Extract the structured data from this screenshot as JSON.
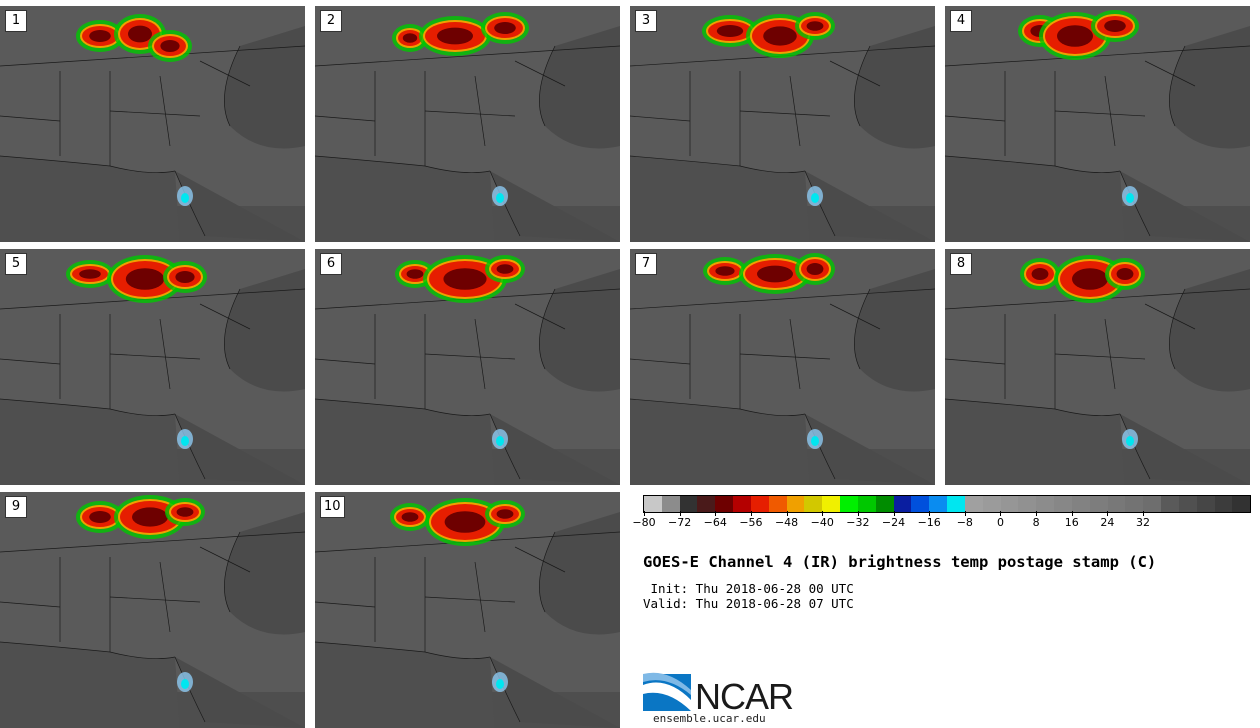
{
  "panels": [
    {
      "label": "1"
    },
    {
      "label": "2"
    },
    {
      "label": "3"
    },
    {
      "label": "4"
    },
    {
      "label": "5"
    },
    {
      "label": "6"
    },
    {
      "label": "7"
    },
    {
      "label": "8"
    },
    {
      "label": "9"
    },
    {
      "label": "10"
    }
  ],
  "colorbar": {
    "colors": [
      "#c8c8c8",
      "#8c8c8c",
      "#323232",
      "#4a1a1a",
      "#6e0000",
      "#b40000",
      "#e61e00",
      "#f05a00",
      "#f0a000",
      "#d2c800",
      "#f0f000",
      "#00f000",
      "#00c800",
      "#008c00",
      "#0a1ea0",
      "#0050dc",
      "#0a8cf0",
      "#00e6f0",
      "#a0a0a0",
      "#9b9b9b",
      "#969696",
      "#919191",
      "#8c8c8c",
      "#878787",
      "#828282",
      "#7d7d7d",
      "#787878",
      "#737373",
      "#6e6e6e",
      "#5a5a5a",
      "#505050",
      "#464646",
      "#3c3c3c",
      "#323232"
    ],
    "tick_values": [
      -80,
      -72,
      -64,
      -56,
      -48,
      -40,
      -32,
      -24,
      -16,
      -8,
      0,
      8,
      16,
      24,
      32
    ]
  },
  "title": "GOES-E Channel 4 (IR) brightness temp postage stamp (C)",
  "init_text": " Init: Thu 2018-06-28 00 UTC",
  "valid_text": "Valid: Thu 2018-06-28 07 UTC",
  "logo": {
    "name": "NCAR",
    "url": "ensemble.ucar.edu"
  }
}
